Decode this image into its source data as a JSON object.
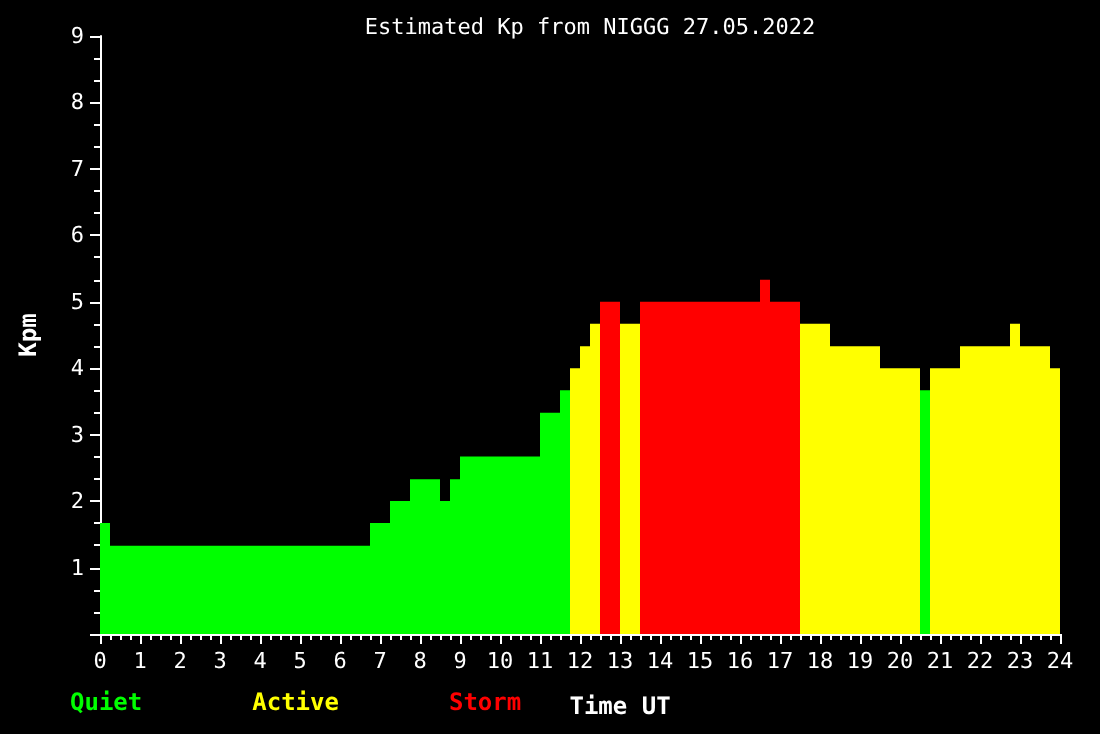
{
  "chart_data": {
    "type": "histogram",
    "title": "Estimated Kp from NIGGG 27.05.2022",
    "xlabel": "Time UT",
    "ylabel": "Kpm",
    "bins": [
      0,
      0.25,
      6.75,
      7.25,
      7.75,
      8.5,
      8.75,
      9,
      11,
      11.5,
      11.75,
      12,
      12.25,
      12.5,
      13,
      13.5,
      16.5,
      16.75,
      17.5,
      18.25,
      19.5,
      20.5,
      20.75,
      21.5,
      22.75,
      23,
      23.75,
      24
    ],
    "series": [
      {
        "name": "Quiet",
        "color": "#00ff00",
        "values": [
          1.67,
          1.33,
          1.67,
          2,
          2.33,
          2,
          2.33,
          2.67,
          3.33,
          3.67,
          null,
          null,
          null,
          null,
          null,
          null,
          null,
          null,
          null,
          null,
          null,
          3.67,
          null,
          null,
          null,
          null,
          null
        ]
      },
      {
        "name": "Active",
        "color": "#ffff00",
        "values": [
          null,
          null,
          null,
          null,
          null,
          null,
          null,
          null,
          null,
          null,
          4,
          4.33,
          4.67,
          null,
          4.67,
          null,
          null,
          null,
          4.67,
          4.33,
          4,
          null,
          4,
          4.33,
          4.67,
          4.33,
          4
        ]
      },
      {
        "name": "Storm",
        "color": "#ff0000",
        "values": [
          null,
          null,
          null,
          null,
          null,
          null,
          null,
          null,
          null,
          null,
          null,
          null,
          null,
          5,
          null,
          5,
          5.33,
          5,
          null,
          null,
          null,
          null,
          null,
          null,
          null,
          null,
          null
        ]
      }
    ],
    "xlim": [
      0,
      24
    ],
    "xticks": [
      0,
      1,
      2,
      3,
      4,
      5,
      6,
      7,
      8,
      9,
      10,
      11,
      12,
      13,
      14,
      15,
      16,
      17,
      18,
      19,
      20,
      21,
      22,
      23,
      24
    ],
    "ylim": [
      0,
      9
    ],
    "yticks": [
      {
        "value": 0,
        "label": null
      },
      1,
      2,
      3,
      4,
      5,
      6,
      7,
      8,
      9
    ],
    "grid": false,
    "legend": "bottom left"
  }
}
